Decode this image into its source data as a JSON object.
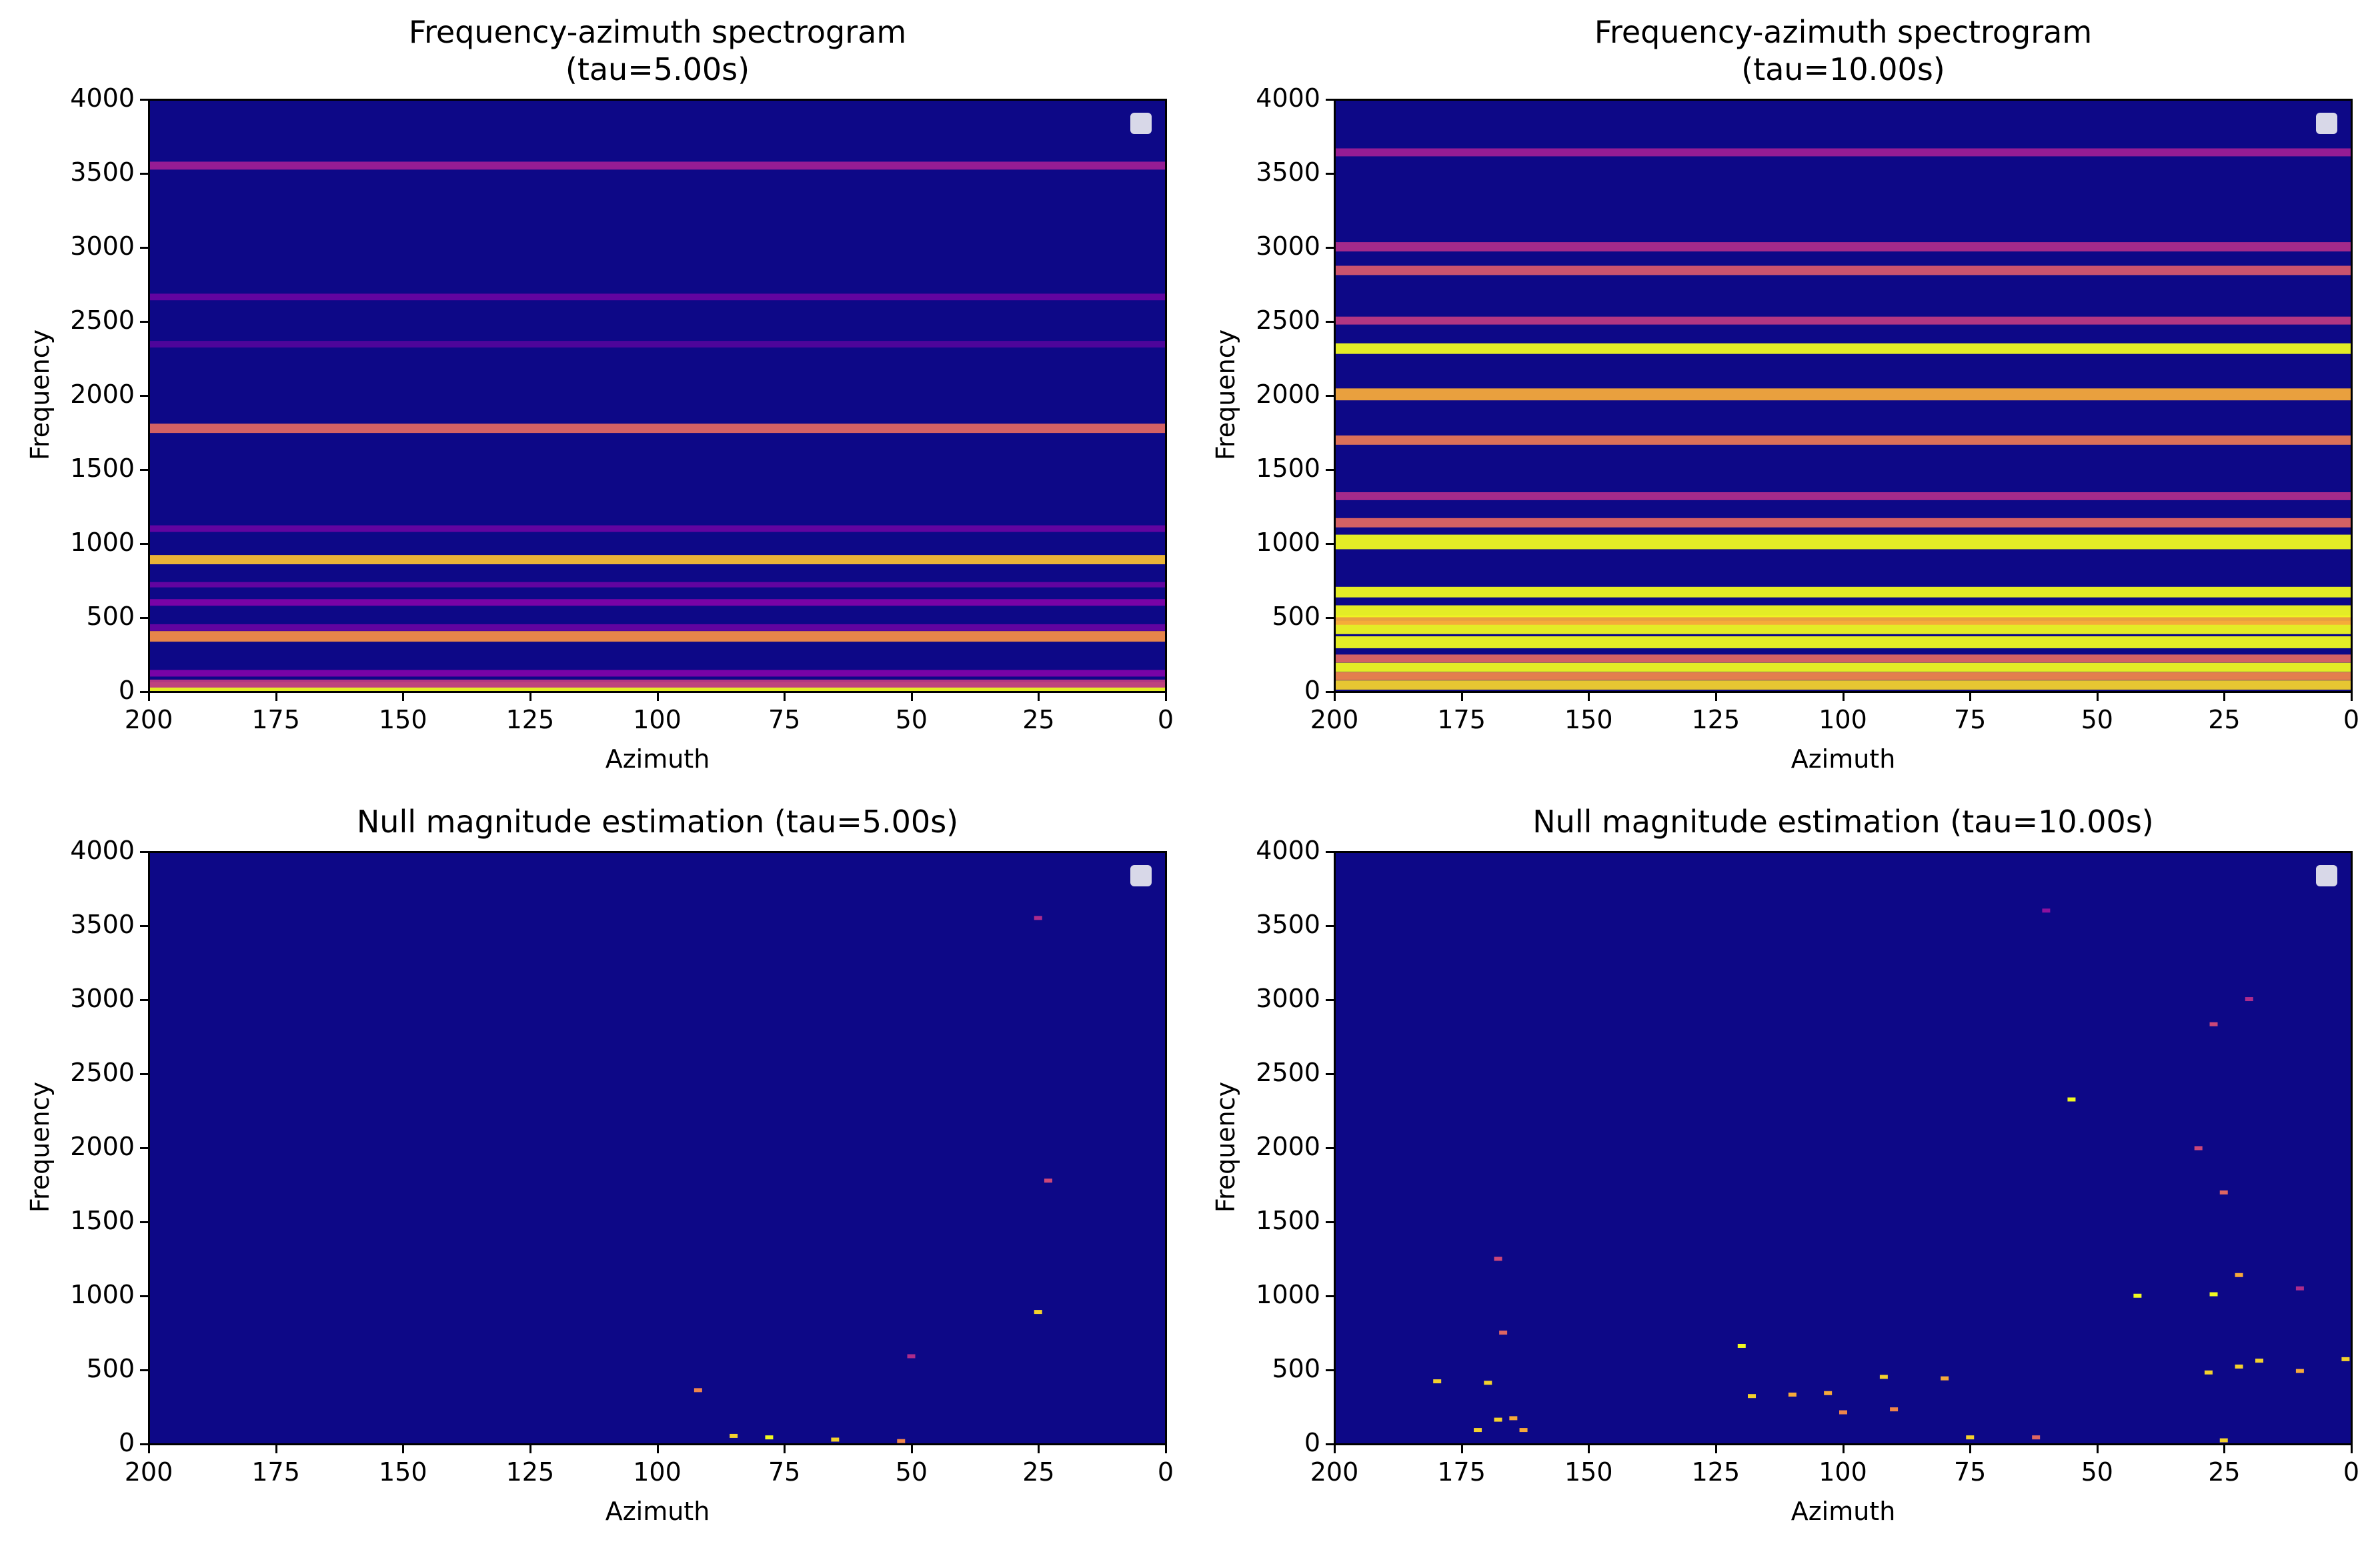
{
  "chart_data": [
    {
      "type": "heatmap",
      "title": "Frequency-azimuth spectrogram\n(tau=5.00s)",
      "xlabel": "Azimuth",
      "ylabel": "Frequency",
      "xlim": [
        200,
        0
      ],
      "ylim": [
        0,
        4000
      ],
      "xticks": [
        "200",
        "175",
        "150",
        "125",
        "100",
        "75",
        "50",
        "25",
        "0"
      ],
      "yticks": [
        "0",
        "500",
        "1000",
        "1500",
        "2000",
        "2500",
        "3000",
        "3500",
        "4000"
      ],
      "colormap": "plasma",
      "bands": [
        {
          "freq": 20,
          "intensity": 1.0,
          "width": 18
        },
        {
          "freq": 50,
          "intensity": 0.45,
          "width": 12
        },
        {
          "freq": 120,
          "intensity": 0.25,
          "width": 10
        },
        {
          "freq": 370,
          "intensity": 0.72,
          "width": 16
        },
        {
          "freq": 430,
          "intensity": 0.2,
          "width": 10
        },
        {
          "freq": 600,
          "intensity": 0.25,
          "width": 10
        },
        {
          "freq": 720,
          "intensity": 0.2,
          "width": 8
        },
        {
          "freq": 890,
          "intensity": 0.85,
          "width": 14
        },
        {
          "freq": 1100,
          "intensity": 0.2,
          "width": 10
        },
        {
          "freq": 1780,
          "intensity": 0.6,
          "width": 14
        },
        {
          "freq": 2350,
          "intensity": 0.15,
          "width": 10
        },
        {
          "freq": 2670,
          "intensity": 0.2,
          "width": 10
        },
        {
          "freq": 3560,
          "intensity": 0.35,
          "width": 12
        }
      ]
    },
    {
      "type": "heatmap",
      "title": "Frequency-azimuth spectrogram\n(tau=10.00s)",
      "xlabel": "Azimuth",
      "ylabel": "Frequency",
      "xlim": [
        200,
        0
      ],
      "ylim": [
        0,
        4000
      ],
      "xticks": [
        "200",
        "175",
        "150",
        "125",
        "100",
        "75",
        "50",
        "25",
        "0"
      ],
      "yticks": [
        "0",
        "500",
        "1000",
        "1500",
        "2000",
        "2500",
        "3000",
        "3500",
        "4000"
      ],
      "colormap": "plasma",
      "bands": [
        {
          "freq": 40,
          "intensity": 0.9,
          "width": 14
        },
        {
          "freq": 100,
          "intensity": 0.7,
          "width": 12
        },
        {
          "freq": 160,
          "intensity": 1.0,
          "width": 14
        },
        {
          "freq": 220,
          "intensity": 0.6,
          "width": 12
        },
        {
          "freq": 330,
          "intensity": 1.0,
          "width": 18
        },
        {
          "freq": 430,
          "intensity": 1.0,
          "width": 20
        },
        {
          "freq": 480,
          "intensity": 0.8,
          "width": 14
        },
        {
          "freq": 540,
          "intensity": 1.0,
          "width": 18
        },
        {
          "freq": 670,
          "intensity": 1.0,
          "width": 16
        },
        {
          "freq": 1010,
          "intensity": 1.0,
          "width": 22
        },
        {
          "freq": 1140,
          "intensity": 0.6,
          "width": 14
        },
        {
          "freq": 1320,
          "intensity": 0.4,
          "width": 12
        },
        {
          "freq": 1700,
          "intensity": 0.65,
          "width": 14
        },
        {
          "freq": 2010,
          "intensity": 0.8,
          "width": 18
        },
        {
          "freq": 2320,
          "intensity": 1.0,
          "width": 16
        },
        {
          "freq": 2510,
          "intensity": 0.45,
          "width": 12
        },
        {
          "freq": 2850,
          "intensity": 0.55,
          "width": 14
        },
        {
          "freq": 3010,
          "intensity": 0.4,
          "width": 14
        },
        {
          "freq": 3650,
          "intensity": 0.35,
          "width": 12
        }
      ]
    },
    {
      "type": "heatmap",
      "title": "Null magnitude estimation (tau=5.00s)",
      "xlabel": "Azimuth",
      "ylabel": "Frequency",
      "xlim": [
        200,
        0
      ],
      "ylim": [
        0,
        4000
      ],
      "xticks": [
        "200",
        "175",
        "150",
        "125",
        "100",
        "75",
        "50",
        "25",
        "0"
      ],
      "yticks": [
        "0",
        "500",
        "1000",
        "1500",
        "2000",
        "2500",
        "3000",
        "3500",
        "4000"
      ],
      "colormap": "plasma",
      "points": [
        {
          "az": 85,
          "freq": 50,
          "intensity": 0.9
        },
        {
          "az": 78,
          "freq": 40,
          "intensity": 1.0
        },
        {
          "az": 65,
          "freq": 25,
          "intensity": 0.9
        },
        {
          "az": 52,
          "freq": 15,
          "intensity": 0.7
        },
        {
          "az": 92,
          "freq": 360,
          "intensity": 0.7
        },
        {
          "az": 25,
          "freq": 890,
          "intensity": 0.9
        },
        {
          "az": 50,
          "freq": 590,
          "intensity": 0.4
        },
        {
          "az": 23,
          "freq": 1780,
          "intensity": 0.5
        },
        {
          "az": 25,
          "freq": 3560,
          "intensity": 0.4
        }
      ]
    },
    {
      "type": "heatmap",
      "title": "Null magnitude estimation (tau=10.00s)",
      "xlabel": "Azimuth",
      "ylabel": "Frequency",
      "xlim": [
        200,
        0
      ],
      "ylim": [
        0,
        4000
      ],
      "xticks": [
        "200",
        "175",
        "150",
        "125",
        "100",
        "75",
        "50",
        "25",
        "0"
      ],
      "yticks": [
        "0",
        "500",
        "1000",
        "1500",
        "2000",
        "2500",
        "3000",
        "3500",
        "4000"
      ],
      "colormap": "plasma",
      "points": [
        {
          "az": 172,
          "freq": 90,
          "intensity": 0.9
        },
        {
          "az": 168,
          "freq": 160,
          "intensity": 0.9
        },
        {
          "az": 165,
          "freq": 170,
          "intensity": 0.8
        },
        {
          "az": 163,
          "freq": 90,
          "intensity": 0.8
        },
        {
          "az": 180,
          "freq": 420,
          "intensity": 0.9
        },
        {
          "az": 170,
          "freq": 410,
          "intensity": 0.9
        },
        {
          "az": 167,
          "freq": 750,
          "intensity": 0.6
        },
        {
          "az": 168,
          "freq": 1250,
          "intensity": 0.5
        },
        {
          "az": 120,
          "freq": 660,
          "intensity": 1.0
        },
        {
          "az": 118,
          "freq": 320,
          "intensity": 0.9
        },
        {
          "az": 110,
          "freq": 330,
          "intensity": 0.8
        },
        {
          "az": 103,
          "freq": 340,
          "intensity": 0.8
        },
        {
          "az": 100,
          "freq": 210,
          "intensity": 0.7
        },
        {
          "az": 92,
          "freq": 450,
          "intensity": 0.9
        },
        {
          "az": 90,
          "freq": 230,
          "intensity": 0.7
        },
        {
          "az": 80,
          "freq": 440,
          "intensity": 0.8
        },
        {
          "az": 75,
          "freq": 40,
          "intensity": 0.9
        },
        {
          "az": 62,
          "freq": 40,
          "intensity": 0.6
        },
        {
          "az": 55,
          "freq": 2330,
          "intensity": 1.0
        },
        {
          "az": 42,
          "freq": 1000,
          "intensity": 1.0
        },
        {
          "az": 30,
          "freq": 2000,
          "intensity": 0.5
        },
        {
          "az": 27,
          "freq": 1010,
          "intensity": 1.0
        },
        {
          "az": 25,
          "freq": 1700,
          "intensity": 0.6
        },
        {
          "az": 22,
          "freq": 1140,
          "intensity": 0.8
        },
        {
          "az": 28,
          "freq": 480,
          "intensity": 0.9
        },
        {
          "az": 22,
          "freq": 520,
          "intensity": 0.9
        },
        {
          "az": 18,
          "freq": 560,
          "intensity": 0.9
        },
        {
          "az": 10,
          "freq": 490,
          "intensity": 0.8
        },
        {
          "az": 1,
          "freq": 570,
          "intensity": 0.9
        },
        {
          "az": 25,
          "freq": 20,
          "intensity": 0.9
        },
        {
          "az": 27,
          "freq": 2840,
          "intensity": 0.5
        },
        {
          "az": 20,
          "freq": 3010,
          "intensity": 0.4
        },
        {
          "az": 10,
          "freq": 1050,
          "intensity": 0.4
        },
        {
          "az": 60,
          "freq": 3610,
          "intensity": 0.3
        }
      ]
    }
  ]
}
